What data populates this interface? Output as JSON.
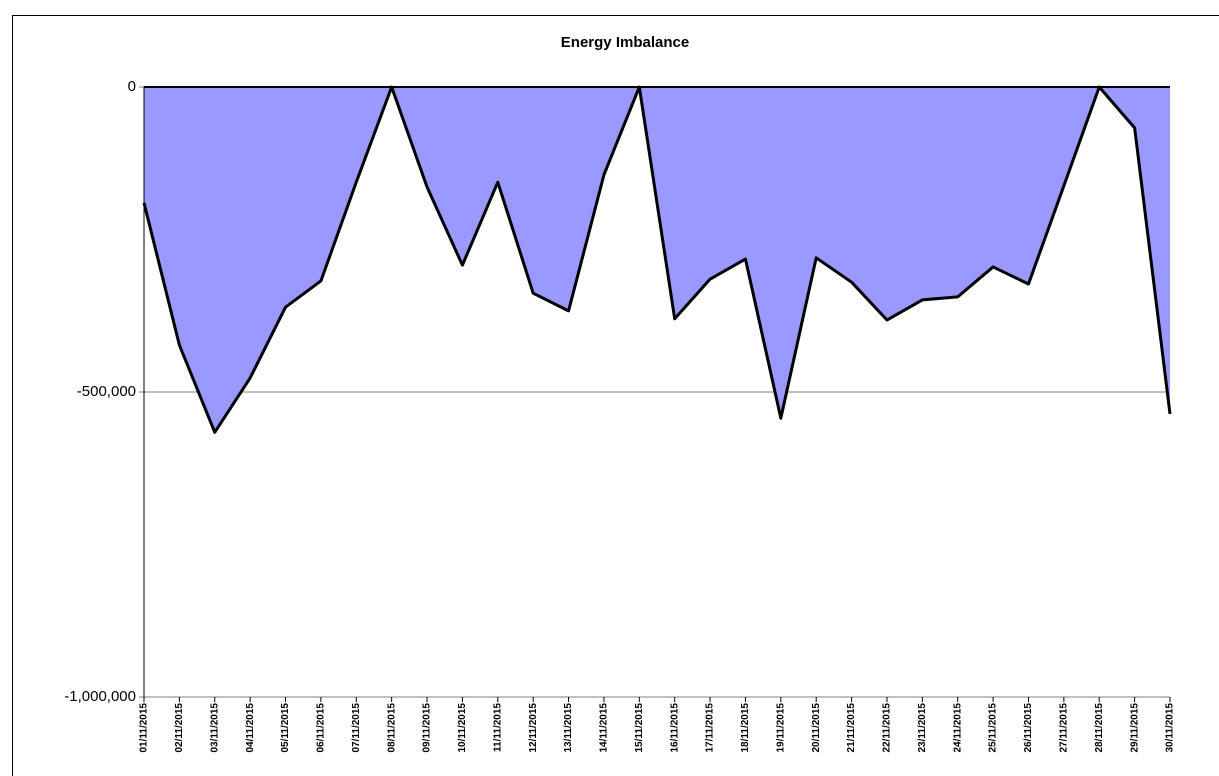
{
  "chart_data": {
    "type": "area",
    "title": "Energy Imbalance",
    "categories": [
      "01/11/2015",
      "02/11/2015",
      "03/11/2015",
      "04/11/2015",
      "05/11/2015",
      "06/11/2015",
      "07/11/2015",
      "08/11/2015",
      "09/11/2015",
      "10/11/2015",
      "11/11/2015",
      "12/11/2015",
      "13/11/2015",
      "14/11/2015",
      "15/11/2015",
      "16/11/2015",
      "17/11/2015",
      "18/11/2015",
      "19/11/2015",
      "20/11/2015",
      "21/11/2015",
      "22/11/2015",
      "23/11/2015",
      "24/11/2015",
      "25/11/2015",
      "26/11/2015",
      "27/11/2015",
      "28/11/2015",
      "29/11/2015",
      "30/11/2015"
    ],
    "values": [
      -190000,
      -423000,
      -566000,
      -477000,
      -361000,
      -318000,
      -156000,
      0,
      -164000,
      -292000,
      -156000,
      -338000,
      -367000,
      -144000,
      0,
      -380000,
      -315000,
      -282000,
      -543000,
      -280000,
      -320000,
      -382000,
      -349000,
      -344000,
      -295000,
      -323000,
      -162000,
      0,
      -67000,
      -536000
    ],
    "color": "#9999ff",
    "line_color": "#000000",
    "ylim": [
      -1000000,
      0
    ],
    "yticks": [
      {
        "value": -1000000,
        "label": "-1,000,000"
      },
      {
        "value": -500000,
        "label": "-500,000"
      },
      0
    ],
    "grid": true
  }
}
